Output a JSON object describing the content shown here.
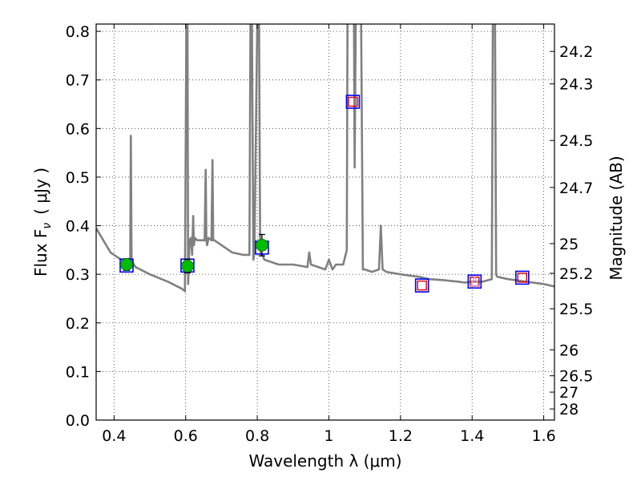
{
  "chart_data": {
    "type": "scatter",
    "xlabel": "Wavelength  λ (μm)",
    "ylabel": "Flux  F",
    "ylabel_subscript": "ν",
    "ylabel_unit": "( μJy )",
    "y2label": "Magnitude (AB)",
    "xlim": [
      0.35,
      1.63
    ],
    "ylim": [
      0.0,
      0.815
    ],
    "grid": true,
    "x_ticks": [
      {
        "value": 0.4,
        "label": "0.4"
      },
      {
        "value": 0.6,
        "label": "0.6"
      },
      {
        "value": 0.8,
        "label": "0.8"
      },
      {
        "value": 1.0,
        "label": "1"
      },
      {
        "value": 1.2,
        "label": "1.2"
      },
      {
        "value": 1.4,
        "label": "1.4"
      },
      {
        "value": 1.6,
        "label": "1.6"
      }
    ],
    "y_ticks": [
      {
        "value": 0.0,
        "label": "0.0"
      },
      {
        "value": 0.1,
        "label": "0.1"
      },
      {
        "value": 0.2,
        "label": "0.2"
      },
      {
        "value": 0.3,
        "label": "0.3"
      },
      {
        "value": 0.4,
        "label": "0.4"
      },
      {
        "value": 0.5,
        "label": "0.5"
      },
      {
        "value": 0.6,
        "label": "0.6"
      },
      {
        "value": 0.7,
        "label": "0.7"
      },
      {
        "value": 0.8,
        "label": "0.8"
      }
    ],
    "y2_ticks": [
      {
        "value": 24.2,
        "label": "24.2"
      },
      {
        "value": 24.3,
        "label": "24.3"
      },
      {
        "value": 24.5,
        "label": "24.5"
      },
      {
        "value": 24.7,
        "label": "24.7"
      },
      {
        "value": 25.0,
        "label": "25"
      },
      {
        "value": 25.2,
        "label": "25.2"
      },
      {
        "value": 25.5,
        "label": "25.5"
      },
      {
        "value": 26.0,
        "label": "26"
      },
      {
        "value": 26.5,
        "label": "26.5"
      },
      {
        "value": 27.0,
        "label": "27"
      },
      {
        "value": 28.0,
        "label": "28"
      }
    ],
    "model_spectrum": {
      "color": "#808080",
      "x": [
        0.35,
        0.37,
        0.39,
        0.41,
        0.42,
        0.43,
        0.44,
        0.445,
        0.447,
        0.449,
        0.451,
        0.46,
        0.5,
        0.55,
        0.59,
        0.598,
        0.602,
        0.605,
        0.607,
        0.611,
        0.615,
        0.618,
        0.621,
        0.623,
        0.626,
        0.632,
        0.64,
        0.653,
        0.656,
        0.658,
        0.66,
        0.664,
        0.672,
        0.675,
        0.677,
        0.68,
        0.7,
        0.73,
        0.76,
        0.778,
        0.781,
        0.785,
        0.789,
        0.792,
        0.8,
        0.805,
        0.808,
        0.811,
        0.814,
        0.82,
        0.86,
        0.9,
        0.94,
        0.945,
        0.95,
        0.99,
        1.0,
        1.01,
        1.02,
        1.04,
        1.05,
        1.052,
        1.055,
        1.058,
        1.06,
        1.065,
        1.07,
        1.072,
        1.075,
        1.08,
        1.085,
        1.09,
        1.095,
        1.1,
        1.12,
        1.14,
        1.145,
        1.15,
        1.16,
        1.2,
        1.25,
        1.28,
        1.32,
        1.36,
        1.38,
        1.4,
        1.43,
        1.455,
        1.458,
        1.461,
        1.464,
        1.467,
        1.47,
        1.5,
        1.55,
        1.6,
        1.63
      ],
      "y": [
        0.395,
        0.37,
        0.345,
        0.335,
        0.33,
        0.325,
        0.33,
        0.33,
        0.585,
        0.33,
        0.325,
        0.315,
        0.3,
        0.285,
        0.27,
        0.265,
        0.82,
        0.82,
        0.28,
        0.37,
        0.375,
        0.34,
        0.42,
        0.36,
        0.375,
        0.37,
        0.37,
        0.37,
        0.515,
        0.37,
        0.36,
        0.375,
        0.37,
        0.535,
        0.37,
        0.37,
        0.36,
        0.345,
        0.34,
        0.34,
        0.82,
        0.82,
        0.33,
        0.345,
        0.82,
        0.82,
        0.35,
        0.34,
        0.34,
        0.33,
        0.32,
        0.32,
        0.315,
        0.345,
        0.32,
        0.31,
        0.33,
        0.31,
        0.32,
        0.32,
        0.35,
        0.82,
        0.82,
        0.82,
        0.82,
        0.82,
        0.82,
        0.52,
        0.82,
        0.82,
        0.82,
        0.82,
        0.31,
        0.31,
        0.305,
        0.31,
        0.4,
        0.31,
        0.305,
        0.3,
        0.295,
        0.29,
        0.288,
        0.285,
        0.283,
        0.285,
        0.285,
        0.29,
        0.82,
        0.82,
        0.82,
        0.3,
        0.295,
        0.29,
        0.285,
        0.28,
        0.275
      ]
    },
    "observed": {
      "color": "#00bb00",
      "points": [
        {
          "x": 0.435,
          "y": 0.32,
          "err": 0.012
        },
        {
          "x": 0.605,
          "y": 0.317,
          "err": 0.014
        },
        {
          "x": 0.813,
          "y": 0.36,
          "err": 0.022
        }
      ]
    },
    "model_bandpass": {
      "color": "#0000ff",
      "points": [
        {
          "x": 0.435,
          "y": 0.318
        },
        {
          "x": 0.605,
          "y": 0.318
        },
        {
          "x": 0.813,
          "y": 0.355
        },
        {
          "x": 1.067,
          "y": 0.655
        },
        {
          "x": 1.26,
          "y": 0.277
        },
        {
          "x": 1.407,
          "y": 0.285
        },
        {
          "x": 1.54,
          "y": 0.293
        }
      ]
    },
    "predicted": {
      "color": "#dd0000",
      "points": [
        {
          "x": 1.067,
          "y": 0.655
        },
        {
          "x": 1.26,
          "y": 0.277
        },
        {
          "x": 1.407,
          "y": 0.285
        },
        {
          "x": 1.54,
          "y": 0.293
        }
      ]
    },
    "upper_limit_marker": {
      "color": "#d99bd9",
      "x": 1.407,
      "y": 0.285
    }
  }
}
